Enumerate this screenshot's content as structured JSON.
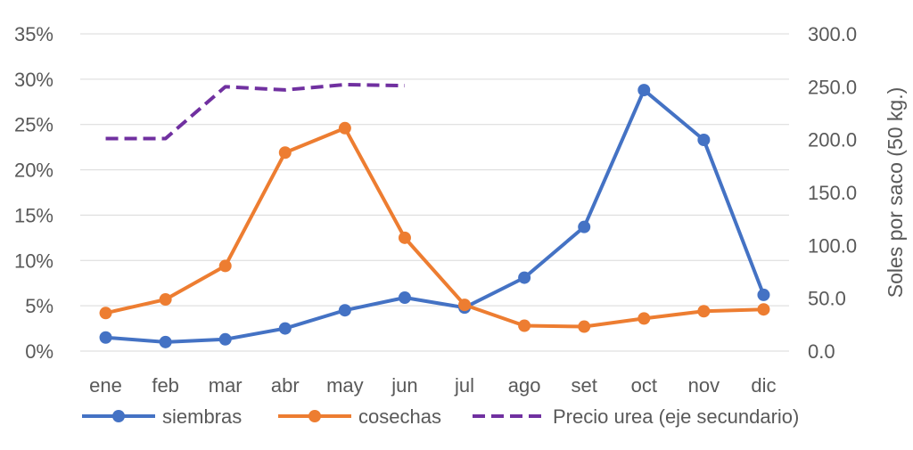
{
  "chart_data": {
    "type": "line",
    "categories": [
      "ene",
      "feb",
      "mar",
      "abr",
      "may",
      "jun",
      "jul",
      "ago",
      "set",
      "oct",
      "nov",
      "dic"
    ],
    "series": [
      {
        "name": "siembras",
        "axis": "left",
        "color": "#4472C4",
        "style": "solid-marker",
        "values": [
          1.5,
          1.0,
          1.3,
          2.5,
          4.5,
          5.9,
          4.8,
          8.1,
          13.7,
          28.8,
          23.3,
          6.2
        ]
      },
      {
        "name": "cosechas",
        "axis": "left",
        "color": "#ED7D31",
        "style": "solid-marker",
        "values": [
          4.2,
          5.7,
          9.4,
          21.9,
          24.6,
          12.5,
          5.1,
          2.8,
          2.7,
          3.6,
          4.4,
          4.6
        ]
      },
      {
        "name": "Precio urea (eje secundario)",
        "axis": "right",
        "color": "#7030A0",
        "style": "dashed",
        "values": [
          201,
          201,
          250,
          247,
          252,
          251,
          null,
          null,
          null,
          null,
          null,
          null
        ]
      }
    ],
    "y_left": {
      "range": [
        0,
        35
      ],
      "ticks": [
        "0%",
        "5%",
        "10%",
        "15%",
        "20%",
        "25%",
        "30%",
        "35%"
      ],
      "tick_values": [
        0,
        5,
        10,
        15,
        20,
        25,
        30,
        35
      ]
    },
    "y_right": {
      "range": [
        0,
        300
      ],
      "ticks": [
        "0.0",
        "50.0",
        "100.0",
        "150.0",
        "200.0",
        "250.0",
        "300.0"
      ],
      "tick_values": [
        0,
        50,
        100,
        150,
        200,
        250,
        300
      ],
      "label": "Soles por saco (50 kg.)"
    },
    "grid": true,
    "legend_position": "bottom"
  }
}
